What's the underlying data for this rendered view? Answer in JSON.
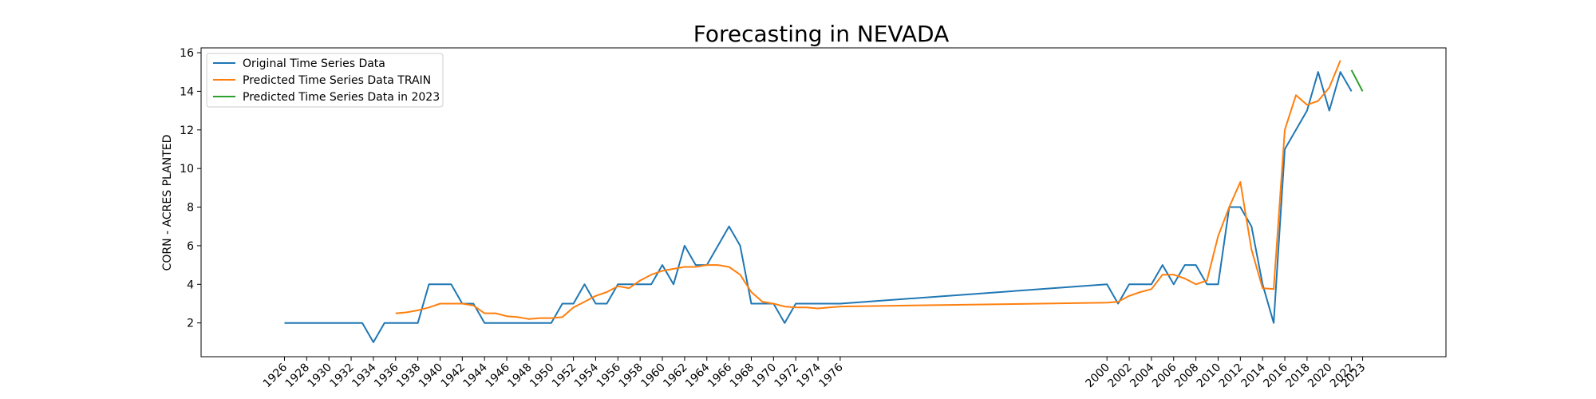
{
  "chart_data": {
    "type": "line",
    "title": "Forecasting in NEVADA",
    "xlabel": "",
    "ylabel": "CORN - ACRES PLANTED",
    "xlim": [
      1918.5,
      2030.5
    ],
    "ylim": [
      0.25,
      16.25
    ],
    "x_ticks": [
      1926,
      1928,
      1930,
      1932,
      1934,
      1936,
      1938,
      1940,
      1942,
      1944,
      1946,
      1948,
      1950,
      1952,
      1954,
      1956,
      1958,
      1960,
      1962,
      1964,
      1966,
      1968,
      1970,
      1972,
      1974,
      1976,
      2000,
      2002,
      2004,
      2006,
      2008,
      2010,
      2012,
      2014,
      2016,
      2018,
      2020,
      2022,
      2023
    ],
    "y_ticks": [
      2,
      4,
      6,
      8,
      10,
      12,
      14,
      16
    ],
    "legend_position": "top-left",
    "grid": false,
    "series": [
      {
        "name": "Original Time Series Data",
        "color": "#1f77b4",
        "x": [
          1926,
          1927,
          1928,
          1929,
          1930,
          1931,
          1932,
          1933,
          1934,
          1935,
          1936,
          1937,
          1938,
          1939,
          1940,
          1941,
          1942,
          1943,
          1944,
          1945,
          1946,
          1947,
          1948,
          1949,
          1950,
          1951,
          1952,
          1953,
          1954,
          1955,
          1956,
          1957,
          1958,
          1959,
          1960,
          1961,
          1962,
          1963,
          1964,
          1966,
          1967,
          1968,
          1969,
          1970,
          1971,
          1972,
          1973,
          1974,
          1975,
          1976,
          2000,
          2001,
          2002,
          2003,
          2004,
          2005,
          2006,
          2007,
          2008,
          2009,
          2010,
          2011,
          2012,
          2013,
          2014,
          2015,
          2016,
          2018,
          2019,
          2020,
          2021,
          2022
        ],
        "values": [
          2,
          2,
          2,
          2,
          2,
          2,
          2,
          2,
          1,
          2,
          2,
          2,
          2,
          4,
          4,
          4,
          3,
          3,
          2,
          2,
          2,
          2,
          2,
          2,
          2,
          3,
          3,
          4,
          3,
          3,
          4,
          4,
          4,
          4,
          5,
          4,
          6,
          5,
          5,
          7,
          6,
          3,
          3,
          3,
          2,
          3,
          3,
          3,
          3,
          3,
          4,
          3,
          4,
          4,
          4,
          5,
          4,
          5,
          5,
          4,
          4,
          8,
          8,
          7,
          4,
          2,
          11,
          13,
          15,
          13,
          15,
          14
        ]
      },
      {
        "name": "Predicted Time Series Data TRAIN",
        "color": "#ff7f0e",
        "x": [
          1936,
          1937,
          1938,
          1939,
          1940,
          1941,
          1942,
          1943,
          1944,
          1945,
          1946,
          1947,
          1948,
          1949,
          1950,
          1951,
          1952,
          1953,
          1954,
          1955,
          1956,
          1957,
          1958,
          1959,
          1960,
          1961,
          1962,
          1963,
          1964,
          1965,
          1966,
          1967,
          1968,
          1969,
          1970,
          1971,
          1972,
          1973,
          1974,
          1975,
          1976,
          2000,
          2001,
          2002,
          2003,
          2004,
          2005,
          2006,
          2007,
          2008,
          2009,
          2010,
          2011,
          2012,
          2013,
          2014,
          2015,
          2016,
          2017,
          2018,
          2019,
          2020,
          2021
        ],
        "values": [
          2.5,
          2.55,
          2.65,
          2.8,
          3.0,
          3.0,
          3.0,
          2.9,
          2.5,
          2.5,
          2.35,
          2.3,
          2.2,
          2.25,
          2.25,
          2.3,
          2.8,
          3.1,
          3.4,
          3.6,
          3.9,
          3.8,
          4.2,
          4.5,
          4.7,
          4.8,
          4.9,
          4.9,
          5.0,
          5.0,
          4.9,
          4.5,
          3.6,
          3.1,
          3.0,
          2.85,
          2.8,
          2.8,
          2.75,
          2.8,
          2.85,
          3.05,
          3.1,
          3.4,
          3.6,
          3.75,
          4.5,
          4.5,
          4.3,
          4.0,
          4.2,
          6.5,
          8.0,
          9.3,
          5.8,
          3.8,
          3.75,
          12.0,
          13.8,
          13.3,
          13.5,
          14.2,
          15.6
        ]
      },
      {
        "name": "Predicted Time Series Data in 2023",
        "color": "#2ca02c",
        "x": [
          2022,
          2023
        ],
        "values": [
          15.1,
          14.0
        ]
      }
    ]
  }
}
